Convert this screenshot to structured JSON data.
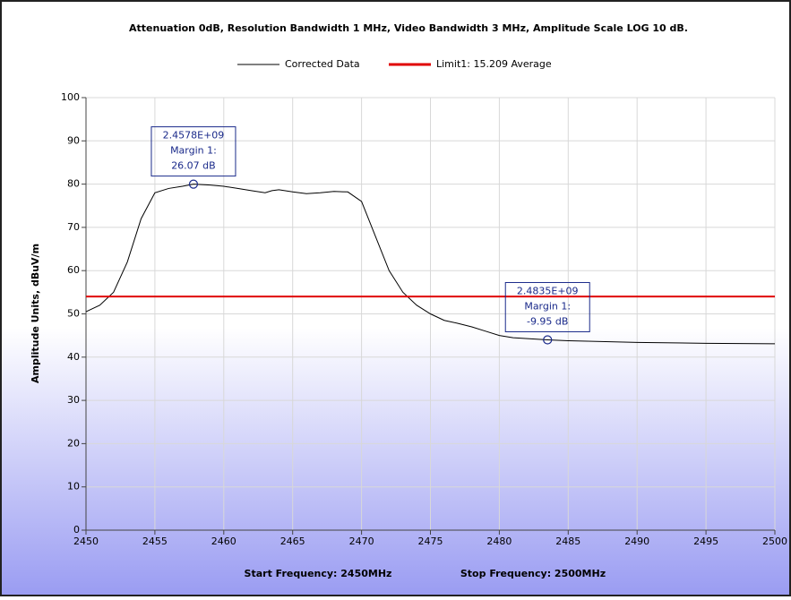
{
  "chart_data": {
    "type": "line",
    "title": "Attenuation 0dB, Resolution Bandwidth 1 MHz, Video Bandwidth 3 MHz, Amplitude Scale LOG 10 dB.",
    "y_label": "Amplitude Units, dBuV/m",
    "x_labels": [
      "Start Frequency: 2450MHz",
      "Stop Frequency: 2500MHz"
    ],
    "x": [
      2450,
      2451,
      2452,
      2453,
      2454,
      2455,
      2456,
      2457,
      2457.8,
      2459,
      2460,
      2461,
      2462,
      2463,
      2463.5,
      2464,
      2465,
      2466,
      2467,
      2468,
      2469,
      2470,
      2471,
      2472,
      2473,
      2474,
      2475,
      2476,
      2477,
      2478,
      2479,
      2480,
      2481,
      2483.5,
      2485,
      2490,
      2495,
      2500
    ],
    "series": [
      {
        "name": "Corrected Data",
        "color": "#000000",
        "values": [
          50.5,
          52,
          55,
          62,
          72,
          78,
          79,
          79.5,
          80,
          79.8,
          79.5,
          79,
          78.5,
          78,
          78.5,
          78.7,
          78.2,
          77.8,
          78,
          78.3,
          78.2,
          76,
          68,
          60,
          55,
          52,
          50,
          48.5,
          47.8,
          47,
          46,
          45,
          44.5,
          44,
          43.8,
          43.4,
          43.2,
          43.1
        ]
      }
    ],
    "limit": {
      "name": "Limit1: 15.209 Average",
      "color": "#e00000",
      "value": 54
    },
    "markers": [
      {
        "x": 2457.8,
        "y": 80,
        "lines": [
          "2.4578E+09",
          "Margin 1:",
          "26.07 dB"
        ]
      },
      {
        "x": 2483.5,
        "y": 44,
        "lines": [
          "2.4835E+09",
          "Margin 1:",
          "-9.95 dB"
        ]
      }
    ],
    "xlim": [
      2450,
      2500
    ],
    "xticks": [
      2450,
      2455,
      2460,
      2465,
      2470,
      2475,
      2480,
      2485,
      2490,
      2495,
      2500
    ],
    "ylim": [
      0,
      100
    ],
    "yticks": [
      0,
      10,
      20,
      30,
      40,
      50,
      60,
      70,
      80,
      90,
      100
    ],
    "grid": true
  }
}
